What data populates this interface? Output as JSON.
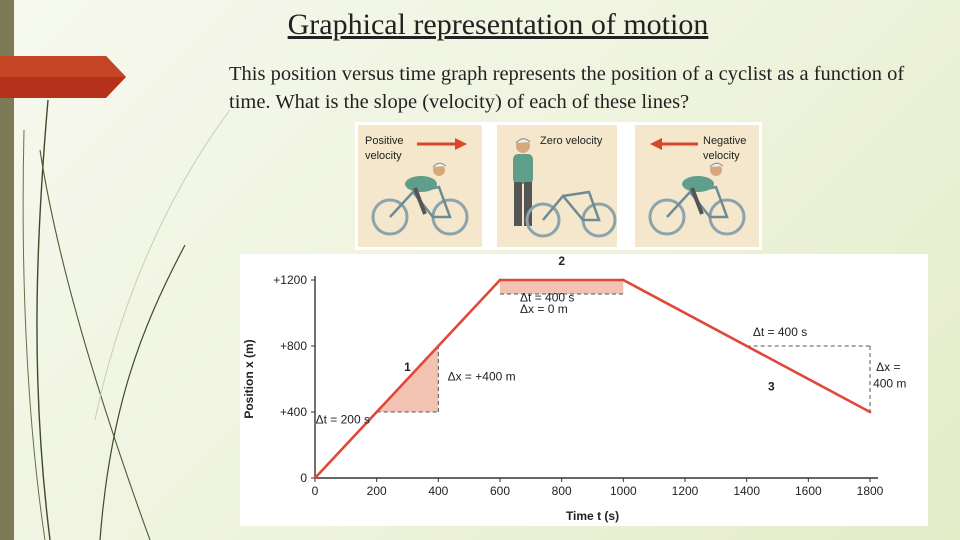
{
  "slide": {
    "title": "Graphical representation of motion",
    "description": "This position versus time graph represents the position of a cyclist as a function of time. What is the slope (velocity) of each of these lines?"
  },
  "illustration": {
    "panels": [
      {
        "label_line1": "Positive",
        "label_line2": "velocity",
        "arrow": "right"
      },
      {
        "label_line1": "Zero velocity",
        "label_line2": "",
        "arrow": "none"
      },
      {
        "label_line1": "Negative",
        "label_line2": "velocity",
        "arrow": "left"
      }
    ],
    "colors": {
      "panel_bg": "#f4e7cc",
      "arrow": "#d9482c",
      "shirt": "#5f9e8a",
      "bike": "#8aa3ad"
    }
  },
  "chart_data": {
    "type": "line",
    "xlabel": "Time t (s)",
    "ylabel": "Position x (m)",
    "xlim": [
      0,
      1800
    ],
    "ylim": [
      0,
      1200
    ],
    "xticks": [
      0,
      200,
      400,
      600,
      800,
      1000,
      1200,
      1400,
      1600,
      1800
    ],
    "yticks": [
      {
        "value": 0,
        "label": "0"
      },
      {
        "value": 400,
        "label": "+400"
      },
      {
        "value": 800,
        "label": "+800"
      },
      {
        "value": 1200,
        "label": "+1200"
      }
    ],
    "series": [
      {
        "x": [
          0,
          600,
          1000,
          1800
        ],
        "y": [
          0,
          1200,
          1200,
          400
        ]
      }
    ],
    "segments": [
      {
        "label": "1",
        "x": 300,
        "y": 650
      },
      {
        "label": "2",
        "x": 800,
        "y": 1290
      },
      {
        "label": "3",
        "x": 1480,
        "y": 530
      }
    ],
    "triangles": [
      {
        "x": [
          200,
          400,
          400
        ],
        "y": [
          400,
          400,
          800
        ]
      },
      {
        "x": [
          600,
          1000,
          1000
        ],
        "y": [
          1200,
          1200,
          1200
        ]
      },
      {
        "x": [
          1400,
          1400,
          1800
        ],
        "y": [
          800,
          800,
          400
        ]
      }
    ],
    "annotations": [
      {
        "text": "Δt = 200 s",
        "x": 2,
        "y": 330
      },
      {
        "text": "Δx = +400 m",
        "x": 430,
        "y": 590
      },
      {
        "text": "Δt = 400 s",
        "x": 665,
        "y": 1070
      },
      {
        "text": "Δx = 0 m",
        "x": 665,
        "y": 1000
      },
      {
        "text": "Δt = 400 s",
        "x": 1420,
        "y": 860
      },
      {
        "text": "Δx =",
        "x": 1820,
        "y": 650
      },
      {
        "text": "400 m",
        "x": 1810,
        "y": 550
      }
    ],
    "colors": {
      "line": "#e0483a",
      "fill": "#f2c3b3",
      "axis": "#333333"
    }
  }
}
